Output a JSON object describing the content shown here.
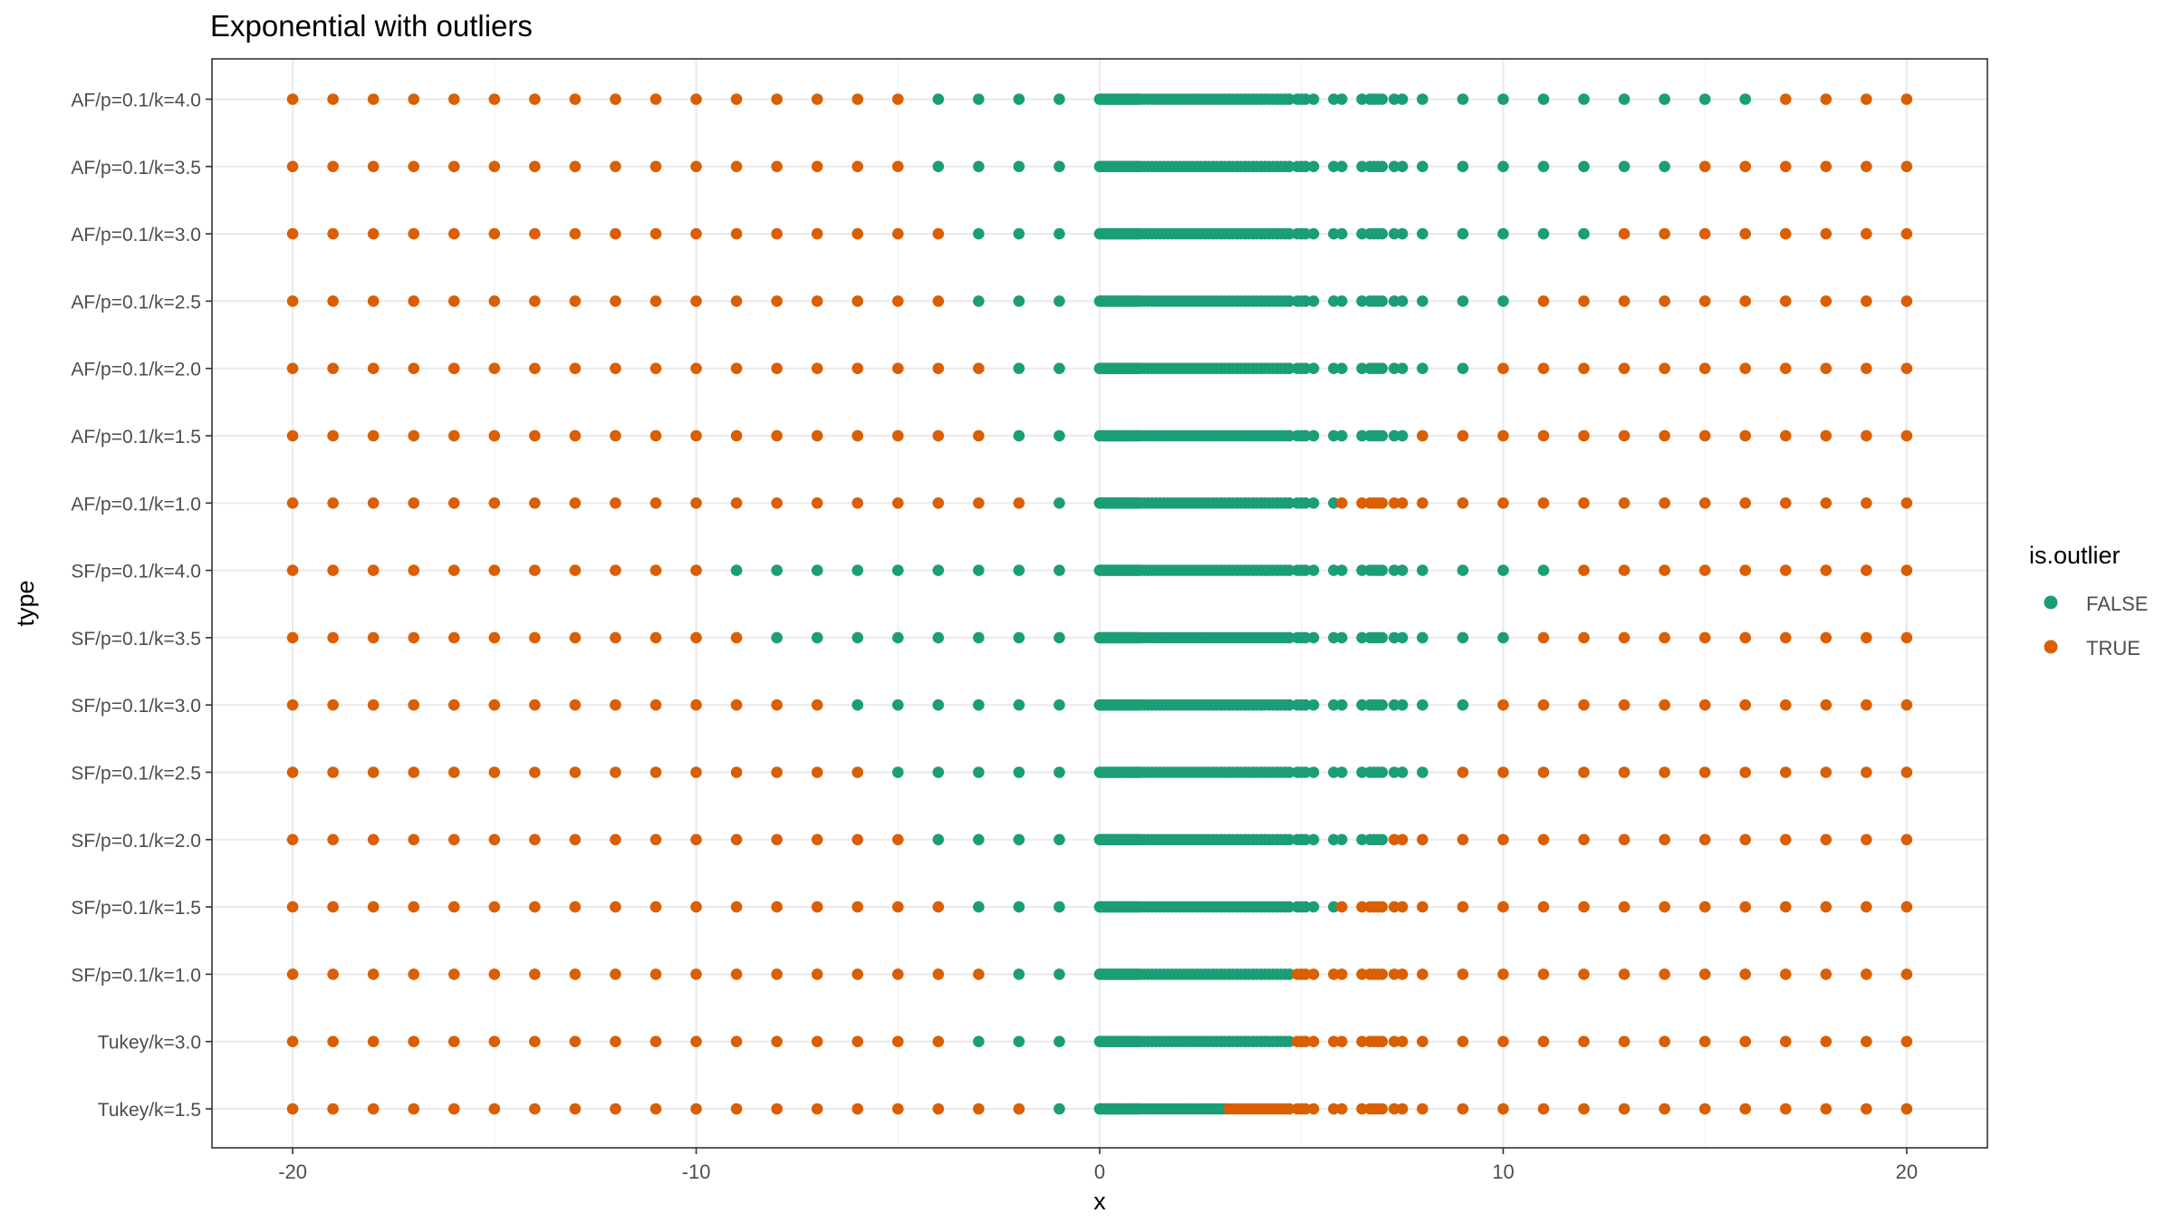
{
  "chart_data": {
    "type": "scatter",
    "title": "Exponential with outliers",
    "xlabel": "x",
    "ylabel": "type",
    "xlim": [
      -22,
      22
    ],
    "x_ticks": [
      -20,
      -10,
      0,
      10,
      20
    ],
    "grid": true,
    "legend": {
      "title": "is.outlier",
      "position": "right",
      "entries": [
        {
          "label": "FALSE",
          "color": "#1b9e77"
        },
        {
          "label": "TRUE",
          "color": "#d95f02"
        }
      ]
    },
    "colors": {
      "FALSE": "#1b9e77",
      "TRUE": "#d95f02"
    },
    "categories": [
      "Tukey/k=1.5",
      "Tukey/k=3.0",
      "SF/p=0.1/k=1.0",
      "SF/p=0.1/k=1.5",
      "SF/p=0.1/k=2.0",
      "SF/p=0.1/k=2.5",
      "SF/p=0.1/k=3.0",
      "SF/p=0.1/k=3.5",
      "SF/p=0.1/k=4.0",
      "AF/p=0.1/k=1.0",
      "AF/p=0.1/k=1.5",
      "AF/p=0.1/k=2.0",
      "AF/p=0.1/k=2.5",
      "AF/p=0.1/k=3.0",
      "AF/p=0.1/k=3.5",
      "AF/p=0.1/k=4.0"
    ],
    "shared_x_values": {
      "outlier_points_left": [
        -20,
        -19,
        -18,
        -17,
        -16,
        -15,
        -14,
        -13,
        -12,
        -11,
        -10,
        -9,
        -8,
        -7,
        -6,
        -5,
        -4,
        -3,
        -2,
        -1
      ],
      "sample_points": [
        0.0,
        0.05,
        0.1,
        0.15,
        0.2,
        0.25,
        0.3,
        0.35,
        0.4,
        0.45,
        0.5,
        0.55,
        0.6,
        0.65,
        0.7,
        0.75,
        0.8,
        0.85,
        0.9,
        0.95,
        1.0,
        1.1,
        1.2,
        1.3,
        1.4,
        1.5,
        1.6,
        1.7,
        1.8,
        1.9,
        2.0,
        2.1,
        2.2,
        2.3,
        2.4,
        2.5,
        2.6,
        2.7,
        2.8,
        2.9,
        3.0,
        3.1,
        3.2,
        3.3,
        3.4,
        3.5,
        3.6,
        3.7,
        3.8,
        3.9,
        4.0,
        4.1,
        4.2,
        4.3,
        4.4,
        4.5,
        4.6,
        4.7,
        4.9,
        5.0,
        5.1,
        5.3,
        5.8,
        6.0,
        6.5,
        6.7,
        6.8,
        6.9,
        7.0,
        7.3,
        7.5,
        8.0
      ],
      "outlier_points_right": [
        9,
        10,
        11,
        12,
        13,
        14,
        15,
        16,
        17,
        18,
        19,
        20
      ]
    },
    "series_by_type": [
      {
        "type": "Tukey/k=1.5",
        "false_range": [
          -1,
          3.1
        ]
      },
      {
        "type": "Tukey/k=3.0",
        "false_range": [
          -3,
          4.7
        ]
      },
      {
        "type": "SF/p=0.1/k=1.0",
        "false_range": [
          -2,
          4.7
        ]
      },
      {
        "type": "SF/p=0.1/k=1.5",
        "false_range": [
          -3,
          5.8
        ]
      },
      {
        "type": "SF/p=0.1/k=2.0",
        "false_range": [
          -4,
          7.0
        ]
      },
      {
        "type": "SF/p=0.1/k=2.5",
        "false_range": [
          -5,
          8.0
        ]
      },
      {
        "type": "SF/p=0.1/k=3.0",
        "false_range": [
          -6,
          9.0
        ]
      },
      {
        "type": "SF/p=0.1/k=3.5",
        "false_range": [
          -8,
          10.0
        ]
      },
      {
        "type": "SF/p=0.1/k=4.0",
        "false_range": [
          -9,
          11.0
        ]
      },
      {
        "type": "AF/p=0.1/k=1.0",
        "false_range": [
          -1,
          5.8
        ]
      },
      {
        "type": "AF/p=0.1/k=1.5",
        "false_range": [
          -2,
          7.5
        ]
      },
      {
        "type": "AF/p=0.1/k=2.0",
        "false_range": [
          -2,
          9.0
        ]
      },
      {
        "type": "AF/p=0.1/k=2.5",
        "false_range": [
          -3,
          10.0
        ]
      },
      {
        "type": "AF/p=0.1/k=3.0",
        "false_range": [
          -3,
          12.0
        ]
      },
      {
        "type": "AF/p=0.1/k=3.5",
        "false_range": [
          -4,
          14.0
        ]
      },
      {
        "type": "AF/p=0.1/k=4.0",
        "false_range": [
          -4,
          16.0
        ]
      }
    ]
  }
}
